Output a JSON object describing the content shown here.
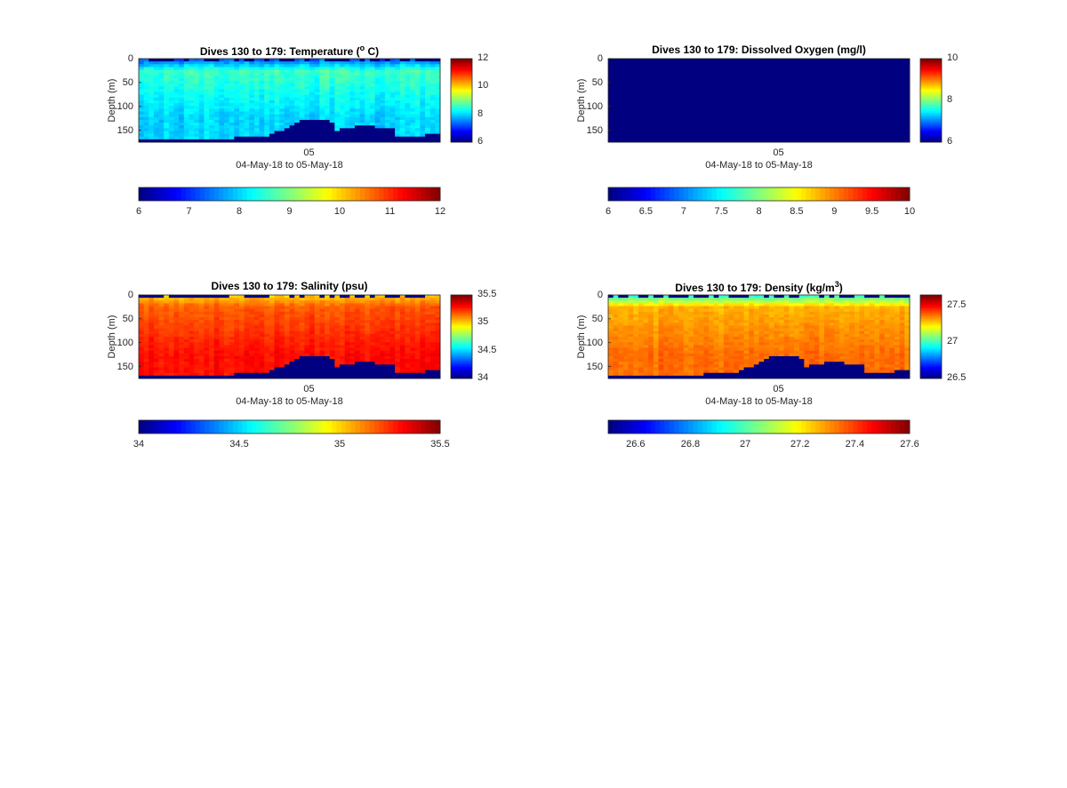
{
  "figure": {
    "background": "#ffffff",
    "colormap": "jet"
  },
  "chart_data": [
    {
      "type": "heatmap",
      "title": "Dives 130 to 179: Temperature",
      "title_parts": [
        "Dives 130 to 179: Temperature (",
        "o",
        " C)"
      ],
      "ylabel": "Depth (m)",
      "xlabel": "04-May-18 to 05-May-18",
      "x_ticks": [
        "05"
      ],
      "y_ticks": [
        "0",
        "50",
        "100",
        "150"
      ],
      "ylim": [
        0,
        175
      ],
      "clim": [
        6,
        12
      ],
      "colorbar_ticks": [
        "6",
        "8",
        "10",
        "12"
      ],
      "hcolorbar_ticks": [
        "6",
        "7",
        "8",
        "9",
        "10",
        "11",
        "12"
      ],
      "pattern": {
        "surface": 7.2,
        "upper": 8.6,
        "deep": 8.0,
        "spread": 0.35,
        "bottom_mask": true,
        "surface_dark": true
      },
      "grid": false
    },
    {
      "type": "heatmap",
      "title": "Dives 130 to 179: Dissolved Oxygen (mg/l)",
      "title_parts": [
        "Dives 130 to 179: Dissolved Oxygen (mg/l)"
      ],
      "ylabel": "Depth (m)",
      "xlabel": "04-May-18 to 05-May-18",
      "x_ticks": [
        "05"
      ],
      "y_ticks": [
        "0",
        "50",
        "100",
        "150"
      ],
      "ylim": [
        0,
        175
      ],
      "clim": [
        6,
        10
      ],
      "colorbar_ticks": [
        "6",
        "8",
        "10"
      ],
      "hcolorbar_ticks": [
        "6",
        "6.5",
        "7",
        "7.5",
        "8",
        "8.5",
        "9",
        "9.5",
        "10"
      ],
      "pattern": {
        "uniform": 6
      },
      "grid": false
    },
    {
      "type": "heatmap",
      "title": "Dives 130 to 179: Salinity (psu)",
      "title_parts": [
        "Dives 130 to 179: Salinity (psu)"
      ],
      "ylabel": "Depth (m)",
      "xlabel": "04-May-18 to 05-May-18",
      "x_ticks": [
        "05"
      ],
      "y_ticks": [
        "0",
        "50",
        "100",
        "150"
      ],
      "ylim": [
        0,
        175
      ],
      "clim": [
        34,
        35.5
      ],
      "colorbar_ticks": [
        "34",
        "34.5",
        "35",
        "35.5"
      ],
      "hcolorbar_ticks": [
        "34",
        "34.5",
        "35",
        "35.5"
      ],
      "pattern": {
        "surface": 35.0,
        "upper": 35.18,
        "deep": 35.3,
        "spread": 0.06,
        "bottom_mask": true,
        "surface_dark": true
      },
      "grid": false
    },
    {
      "type": "heatmap",
      "title": "Dives 130 to 179: Density",
      "title_parts": [
        "Dives 130 to 179: Density (kg/m",
        "3",
        ")"
      ],
      "ylabel": "Depth (m)",
      "xlabel": "04-May-18 to 05-May-18",
      "x_ticks": [
        "05"
      ],
      "y_ticks": [
        "0",
        "50",
        "100",
        "150"
      ],
      "ylim": [
        0,
        175
      ],
      "clim": [
        26.5,
        27.65
      ],
      "colorbar_ticks": [
        "26.5",
        "27",
        "27.5"
      ],
      "hcolorbar_ticks": [
        "26.6",
        "26.8",
        "27",
        "27.2",
        "27.4",
        "27.6"
      ],
      "hcolorbar_lim": [
        26.5,
        27.6
      ],
      "pattern": {
        "surface": 26.95,
        "upper": 27.3,
        "deep": 27.38,
        "spread": 0.05,
        "bottom_mask": true,
        "surface_dark": true
      },
      "grid": false
    }
  ]
}
